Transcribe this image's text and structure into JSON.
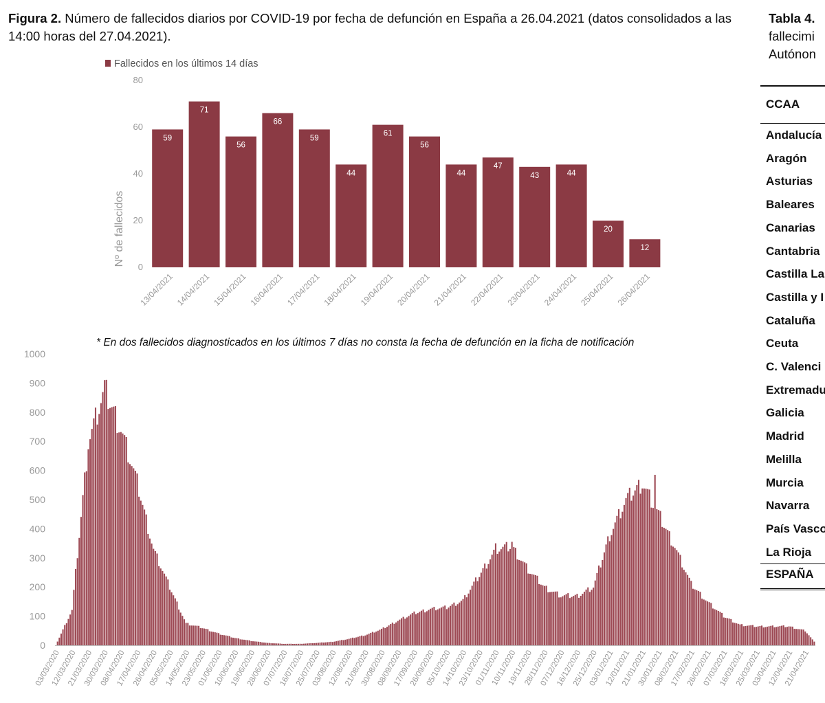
{
  "figure": {
    "label": "Figura 2.",
    "caption": "Número de fallecidos diarios por COVID-19 por fecha de defunción en España a 26.04.2021 (datos consolidados a las 14:00 horas del 27.04.2021)."
  },
  "footnote": "* En dos  fallecidos diagnosticados en los últimos 7 días no consta la fecha de defunción en la ficha de notificación",
  "table": {
    "label": "Tabla 4.",
    "caption_line2": "fallecimi",
    "caption_line3": "Autónon",
    "header": "CCAA",
    "rows": [
      "Andalucía",
      "Aragón",
      "Asturias",
      "Baleares",
      "Canarias",
      "Cantabria",
      "Castilla La",
      "Castilla y I",
      "Cataluña",
      "Ceuta",
      "C. Valenci",
      "Extremadu",
      "Galicia",
      "Madrid",
      "Melilla",
      "Murcia",
      "Navarra",
      "País Vasco",
      "La Rioja",
      "ESPAÑA"
    ]
  },
  "colors": {
    "bar": "#8B3A44",
    "bar_light": "#9E4B56",
    "axis_text": "#999999",
    "axis_line": "#BFBFBF",
    "label_text": "#FFFFFF"
  },
  "chart_data": [
    {
      "type": "bar",
      "legend": "Fallecidos en los últimos 14 días",
      "legend_position": "top-left",
      "ylabel": "Nº de fallecidos",
      "ylim": [
        0,
        80
      ],
      "yticks": [
        0,
        20,
        40,
        60,
        80
      ],
      "grid": false,
      "categories": [
        "13/04/2021",
        "14/04/2021",
        "15/04/2021",
        "16/04/2021",
        "17/04/2021",
        "18/04/2021",
        "19/04/2021",
        "20/04/2021",
        "21/04/2021",
        "22/04/2021",
        "23/04/2021",
        "24/04/2021",
        "25/04/2021",
        "26/04/2021"
      ],
      "values": [
        59,
        71,
        56,
        66,
        59,
        44,
        61,
        56,
        44,
        47,
        43,
        44,
        20,
        12
      ]
    },
    {
      "type": "bar",
      "ylim": [
        0,
        1000
      ],
      "yticks": [
        0,
        100,
        200,
        300,
        400,
        500,
        600,
        700,
        800,
        900,
        1000
      ],
      "grid": false,
      "x_start": "03/03/2020",
      "x_end": "26/04/2021",
      "tick_labels": [
        "03/03/2020",
        "12/03/2020",
        "21/03/2020",
        "30/03/2020",
        "08/04/2020",
        "17/04/2020",
        "26/04/2020",
        "05/05/2020",
        "14/05/2020",
        "23/05/2020",
        "01/06/2020",
        "10/06/2020",
        "19/06/2020",
        "28/06/2020",
        "07/07/2020",
        "16/07/2020",
        "25/07/2020",
        "03/08/2020",
        "12/08/2020",
        "21/08/2020",
        "30/08/2020",
        "08/09/2020",
        "17/09/2020",
        "26/09/2020",
        "05/10/2020",
        "14/10/2020",
        "23/10/2020",
        "01/11/2020",
        "10/11/2020",
        "19/11/2020",
        "28/11/2020",
        "07/12/2020",
        "16/12/2020",
        "25/12/2020",
        "03/01/2021",
        "12/01/2021",
        "21/01/2021",
        "30/01/2021",
        "08/02/2021",
        "17/02/2021",
        "26/02/2021",
        "07/03/2021",
        "16/03/2021",
        "25/03/2021",
        "03/04/2021",
        "12/04/2021",
        "21/04/2021"
      ],
      "x_every_days": 9,
      "y_at_tick_labels": [
        0,
        120,
        700,
        880,
        745,
        560,
        330,
        200,
        75,
        60,
        40,
        25,
        15,
        8,
        5,
        5,
        8,
        12,
        22,
        35,
        55,
        85,
        110,
        125,
        130,
        155,
        240,
        330,
        340,
        260,
        200,
        170,
        170,
        200,
        380,
        500,
        560,
        450,
        340,
        210,
        150,
        100,
        70,
        65,
        65,
        65,
        50
      ],
      "y_last": 12,
      "peaks": [
        {
          "x": "30/03/2020",
          "y": 910
        },
        {
          "x": "01/11/2020",
          "y": 350
        },
        {
          "x": "10/11/2020",
          "y": 355
        },
        {
          "x": "28/01/2021",
          "y": 585
        }
      ]
    }
  ]
}
